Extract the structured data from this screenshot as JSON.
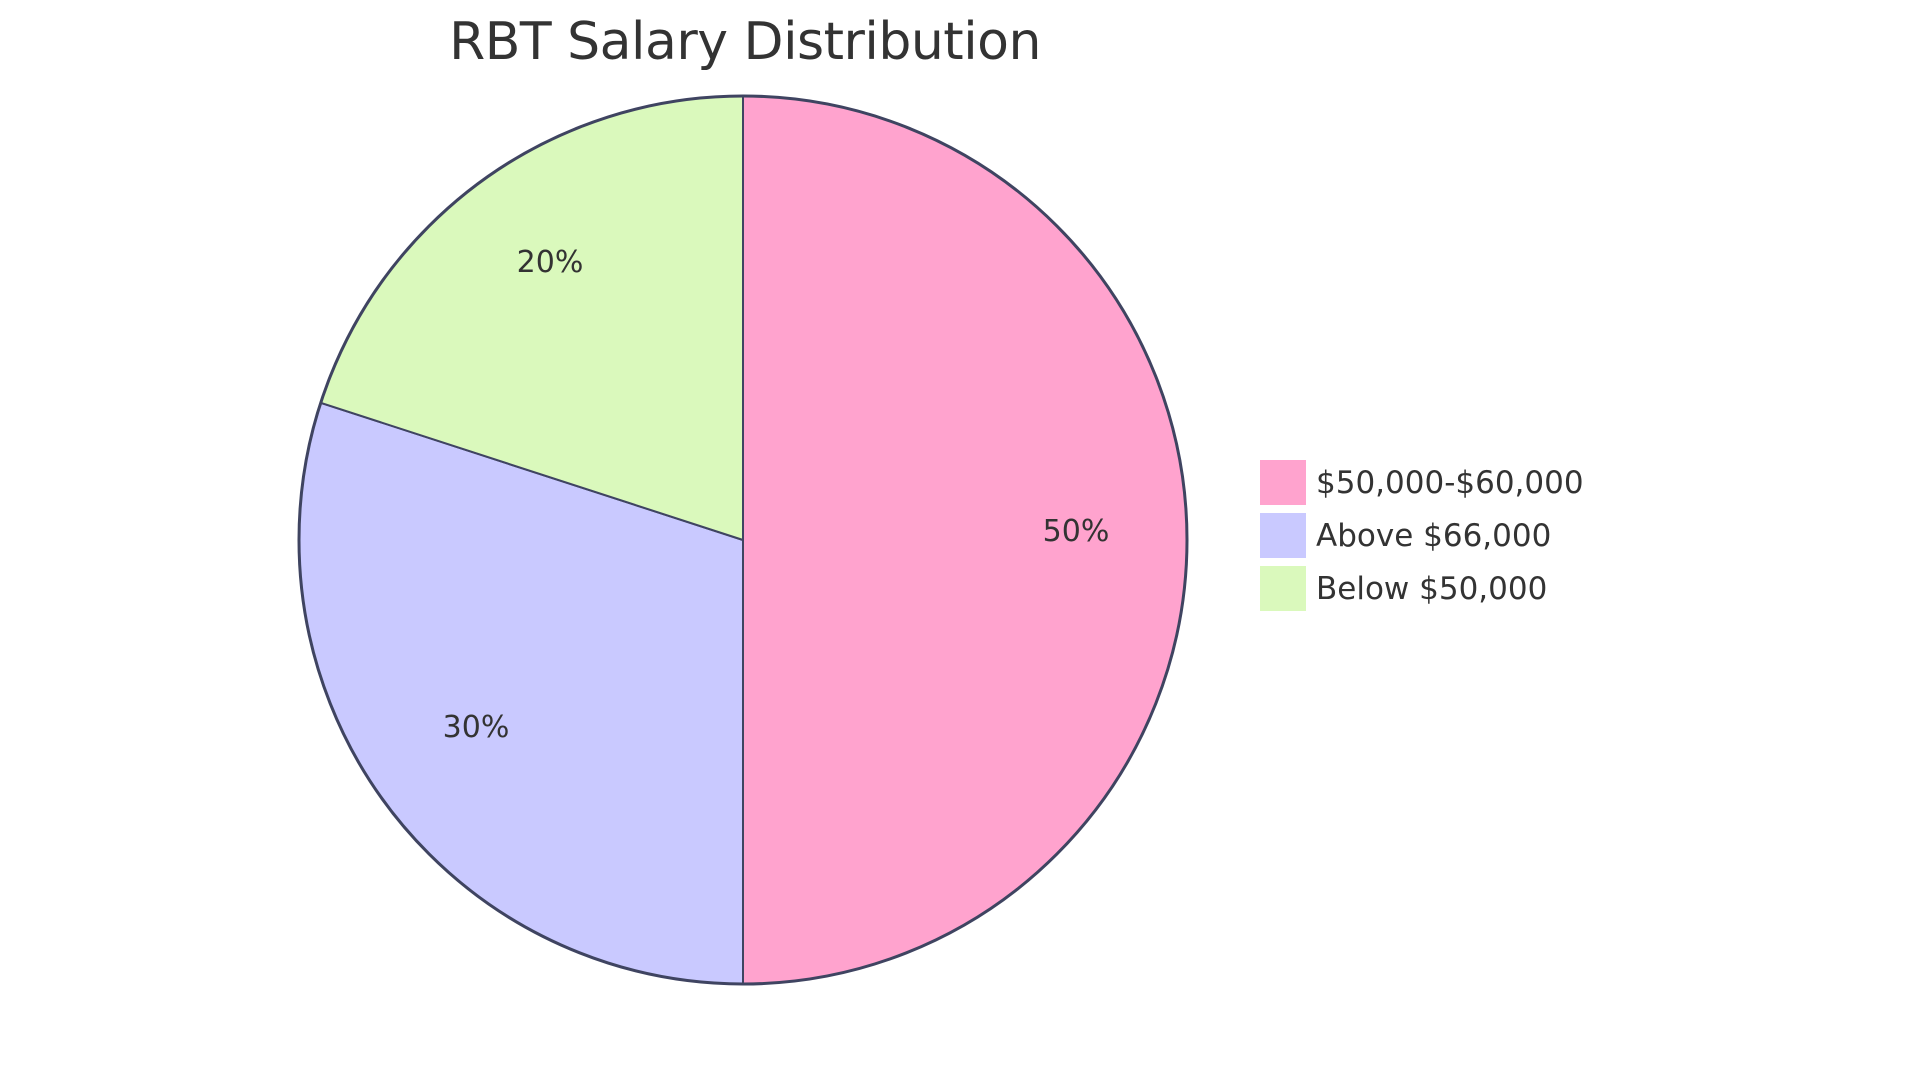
{
  "chart_data": {
    "type": "pie",
    "title": "RBT Salary Distribution",
    "categories": [
      "$50,000-$60,000",
      "Above $66,000",
      "Below $50,000"
    ],
    "values": [
      50,
      30,
      20
    ],
    "labels": [
      "50%",
      "30%",
      "20%"
    ],
    "colors": [
      "#FFA3CE",
      "#C9C9FF",
      "#DAF9BC"
    ],
    "legend_position": "right",
    "stroke_color": "#3F4461"
  },
  "title": "RBT Salary Distribution",
  "legend": {
    "items": [
      {
        "label": "$50,000-$60,000",
        "color": "#FFA3CE"
      },
      {
        "label": "Above $66,000",
        "color": "#C9C9FF"
      },
      {
        "label": "Below $50,000",
        "color": "#DAF9BC"
      }
    ]
  },
  "slices": [
    {
      "label": "50%"
    },
    {
      "label": "30%"
    },
    {
      "label": "20%"
    }
  ]
}
